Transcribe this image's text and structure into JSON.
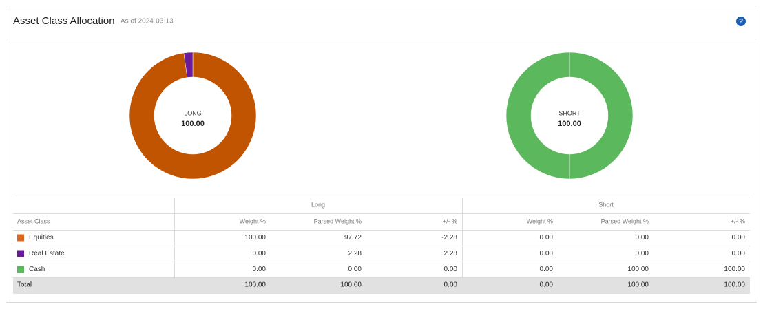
{
  "header": {
    "title": "Asset Class Allocation",
    "subtitle": "As of 2024-03-13",
    "help_icon": "?"
  },
  "chart_data": [
    {
      "type": "pie",
      "center_label": "LONG",
      "center_value": "100.00",
      "values": [
        97.72,
        2.28
      ],
      "colors": [
        "#c05400",
        "#6a1b9a"
      ]
    },
    {
      "type": "pie",
      "center_label": "SHORT",
      "center_value": "100.00",
      "values": [
        100
      ],
      "colors": [
        "#5cb85c"
      ]
    }
  ],
  "table": {
    "group_headers": [
      "Long",
      "Short"
    ],
    "columns": [
      "Asset Class",
      "Weight %",
      "Parsed Weight %",
      "+/- %",
      "Weight %",
      "Parsed Weight %",
      "+/- %"
    ],
    "rows": [
      {
        "color": "#e0661c",
        "cells": [
          "Equities",
          "100.00",
          "97.72",
          "-2.28",
          "0.00",
          "0.00",
          "0.00"
        ]
      },
      {
        "color": "#6a1b9a",
        "cells": [
          "Real Estate",
          "0.00",
          "2.28",
          "2.28",
          "0.00",
          "0.00",
          "0.00"
        ]
      },
      {
        "color": "#5cb85c",
        "cells": [
          "Cash",
          "0.00",
          "0.00",
          "0.00",
          "0.00",
          "100.00",
          "100.00"
        ]
      }
    ],
    "total": [
      "Total",
      "100.00",
      "100.00",
      "0.00",
      "0.00",
      "100.00",
      "100.00"
    ]
  }
}
